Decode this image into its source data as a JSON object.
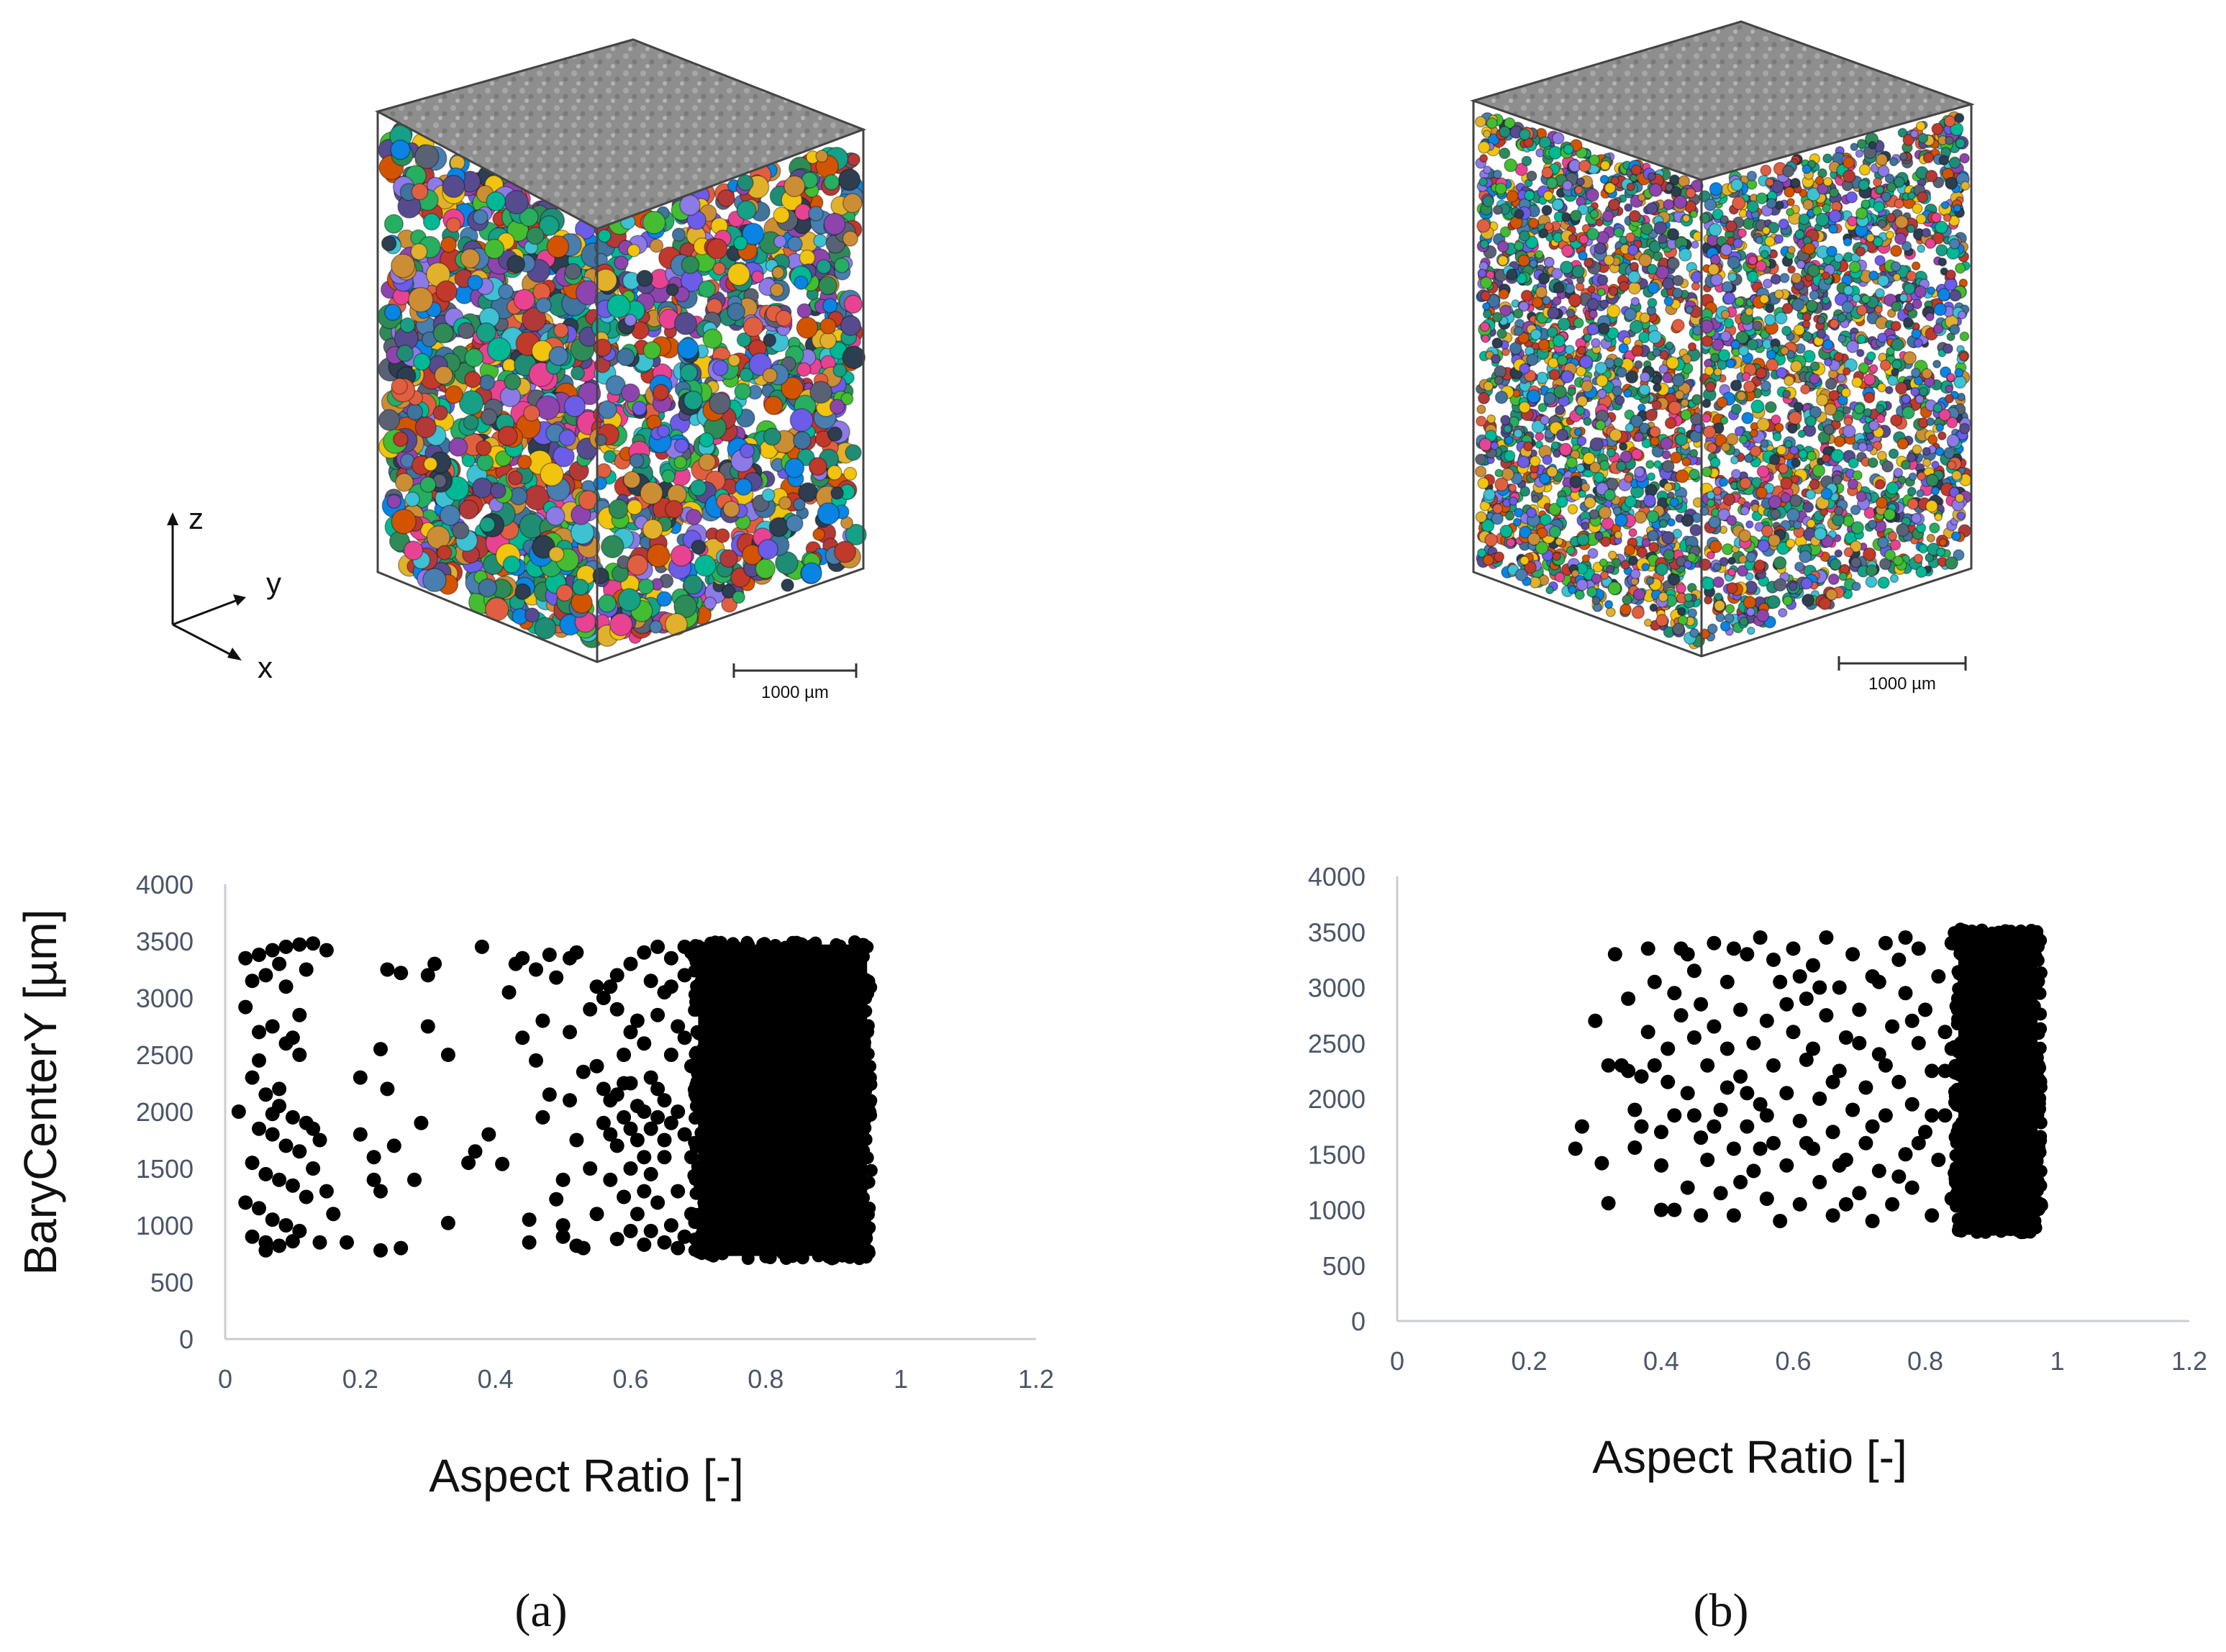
{
  "panels": [
    {
      "label": "(a)",
      "scale_bar_label": "1000 µm",
      "axes_triad": {
        "z": "z",
        "y": "y",
        "x": "x"
      }
    },
    {
      "label": "(b)",
      "scale_bar_label": "1000 µm"
    }
  ],
  "colors": {
    "marker": "#000000",
    "axis_line": "#c8ccd2",
    "tick_text": "#4a5568",
    "box_top": "#8e8e8e",
    "box_edge": "#444444"
  },
  "chart_data": [
    {
      "type": "scatter",
      "title": "",
      "xlabel": "Aspect Ratio [-]",
      "ylabel": "BaryCenterY [µm]",
      "xlim": [
        0,
        1.2
      ],
      "ylim": [
        0,
        4000
      ],
      "xticks": [
        "0",
        "0.2",
        "0.4",
        "0.6",
        "0.8",
        "1",
        "1.2"
      ],
      "yticks": [
        "0",
        "500",
        "1000",
        "1500",
        "2000",
        "2500",
        "3000",
        "3500",
        "4000"
      ],
      "grid": false,
      "legend": "none",
      "dense_cluster": {
        "x": [
          0.7,
          0.95
        ],
        "y": [
          730,
          3470
        ]
      },
      "points": [
        [
          0.03,
          3350
        ],
        [
          0.05,
          3380
        ],
        [
          0.07,
          3420
        ],
        [
          0.09,
          3450
        ],
        [
          0.11,
          3470
        ],
        [
          0.13,
          3480
        ],
        [
          0.15,
          3420
        ],
        [
          0.04,
          3150
        ],
        [
          0.06,
          3200
        ],
        [
          0.08,
          3300
        ],
        [
          0.03,
          2920
        ],
        [
          0.05,
          2700
        ],
        [
          0.07,
          2750
        ],
        [
          0.09,
          2600
        ],
        [
          0.11,
          2500
        ],
        [
          0.04,
          2300
        ],
        [
          0.06,
          2150
        ],
        [
          0.08,
          2050
        ],
        [
          0.1,
          1950
        ],
        [
          0.12,
          1900
        ],
        [
          0.05,
          1850
        ],
        [
          0.07,
          1800
        ],
        [
          0.09,
          1700
        ],
        [
          0.11,
          1650
        ],
        [
          0.13,
          1850
        ],
        [
          0.04,
          1550
        ],
        [
          0.06,
          1450
        ],
        [
          0.08,
          1400
        ],
        [
          0.1,
          1350
        ],
        [
          0.12,
          1250
        ],
        [
          0.05,
          1150
        ],
        [
          0.07,
          1050
        ],
        [
          0.09,
          1000
        ],
        [
          0.11,
          950
        ],
        [
          0.04,
          900
        ],
        [
          0.06,
          850
        ],
        [
          0.08,
          820
        ],
        [
          0.1,
          860
        ],
        [
          0.14,
          850
        ],
        [
          0.03,
          1200
        ],
        [
          0.05,
          2450
        ],
        [
          0.07,
          1980
        ],
        [
          0.09,
          3100
        ],
        [
          0.11,
          2850
        ],
        [
          0.13,
          1500
        ],
        [
          0.15,
          1300
        ],
        [
          0.06,
          780
        ],
        [
          0.08,
          2200
        ],
        [
          0.1,
          2650
        ],
        [
          0.12,
          3250
        ],
        [
          0.14,
          1750
        ],
        [
          0.02,
          2000
        ],
        [
          0.16,
          1100
        ],
        [
          0.18,
          850
        ],
        [
          0.2,
          1800
        ],
        [
          0.2,
          2300
        ],
        [
          0.22,
          1600
        ],
        [
          0.23,
          1300
        ],
        [
          0.24,
          2200
        ],
        [
          0.25,
          1700
        ],
        [
          0.23,
          2550
        ],
        [
          0.24,
          3250
        ],
        [
          0.26,
          3220
        ],
        [
          0.28,
          1400
        ],
        [
          0.29,
          1900
        ],
        [
          0.3,
          3200
        ],
        [
          0.31,
          3300
        ],
        [
          0.3,
          2750
        ],
        [
          0.33,
          2500
        ],
        [
          0.33,
          1020
        ],
        [
          0.22,
          1400
        ],
        [
          0.26,
          800
        ],
        [
          0.23,
          780
        ],
        [
          0.36,
          1550
        ],
        [
          0.37,
          1650
        ],
        [
          0.39,
          1800
        ],
        [
          0.41,
          1540
        ],
        [
          0.38,
          3450
        ],
        [
          0.42,
          3050
        ],
        [
          0.43,
          3300
        ],
        [
          0.44,
          3350
        ],
        [
          0.45,
          850
        ],
        [
          0.46,
          3250
        ],
        [
          0.46,
          2450
        ],
        [
          0.47,
          1950
        ],
        [
          0.48,
          2150
        ],
        [
          0.49,
          1230
        ],
        [
          0.49,
          3180
        ],
        [
          0.5,
          900
        ],
        [
          0.5,
          1000
        ],
        [
          0.51,
          2700
        ],
        [
          0.51,
          2100
        ],
        [
          0.52,
          3400
        ],
        [
          0.53,
          800
        ],
        [
          0.54,
          1500
        ],
        [
          0.54,
          2900
        ],
        [
          0.47,
          2800
        ],
        [
          0.45,
          1050
        ],
        [
          0.52,
          1750
        ],
        [
          0.55,
          3100
        ],
        [
          0.53,
          2350
        ],
        [
          0.5,
          1400
        ],
        [
          0.48,
          3380
        ],
        [
          0.44,
          2650
        ],
        [
          0.52,
          820
        ],
        [
          0.51,
          3350
        ],
        [
          0.55,
          1100
        ],
        [
          0.56,
          1900
        ],
        [
          0.57,
          2100
        ],
        [
          0.58,
          1700
        ],
        [
          0.59,
          2250
        ],
        [
          0.6,
          1850
        ],
        [
          0.61,
          2050
        ],
        [
          0.62,
          1600
        ],
        [
          0.63,
          2300
        ],
        [
          0.64,
          1950
        ],
        [
          0.65,
          1750
        ],
        [
          0.56,
          2200
        ],
        [
          0.57,
          1800
        ],
        [
          0.58,
          2150
        ],
        [
          0.59,
          1950
        ],
        [
          0.6,
          2250
        ],
        [
          0.61,
          1750
        ],
        [
          0.62,
          2000
        ],
        [
          0.63,
          1850
        ],
        [
          0.64,
          2200
        ],
        [
          0.65,
          2100
        ],
        [
          0.66,
          1900
        ],
        [
          0.67,
          2000
        ],
        [
          0.68,
          1800
        ],
        [
          0.57,
          1400
        ],
        [
          0.59,
          1250
        ],
        [
          0.61,
          1100
        ],
        [
          0.63,
          950
        ],
        [
          0.65,
          850
        ],
        [
          0.67,
          800
        ],
        [
          0.6,
          3300
        ],
        [
          0.62,
          3400
        ],
        [
          0.64,
          3450
        ],
        [
          0.66,
          3350
        ],
        [
          0.68,
          3450
        ],
        [
          0.58,
          2900
        ],
        [
          0.6,
          2700
        ],
        [
          0.62,
          2600
        ],
        [
          0.64,
          2850
        ],
        [
          0.66,
          2500
        ],
        [
          0.68,
          2650
        ],
        [
          0.56,
          3000
        ],
        [
          0.58,
          3200
        ],
        [
          0.6,
          1500
        ],
        [
          0.62,
          1300
        ],
        [
          0.64,
          1200
        ],
        [
          0.66,
          1000
        ],
        [
          0.68,
          900
        ],
        [
          0.58,
          880
        ],
        [
          0.62,
          830
        ],
        [
          0.66,
          3100
        ],
        [
          0.68,
          3200
        ],
        [
          0.59,
          2500
        ],
        [
          0.61,
          2800
        ],
        [
          0.63,
          3150
        ],
        [
          0.65,
          3050
        ],
        [
          0.67,
          2750
        ],
        [
          0.69,
          3400
        ],
        [
          0.69,
          2400
        ],
        [
          0.69,
          1600
        ],
        [
          0.69,
          1100
        ],
        [
          0.57,
          3100
        ],
        [
          0.6,
          950
        ],
        [
          0.63,
          1450
        ],
        [
          0.65,
          1600
        ],
        [
          0.67,
          1300
        ],
        [
          0.55,
          2400
        ]
      ]
    },
    {
      "type": "scatter",
      "title": "",
      "xlabel": "Aspect Ratio [-]",
      "ylabel": "",
      "xlim": [
        0,
        1.2
      ],
      "ylim": [
        0,
        4000
      ],
      "xticks": [
        "0",
        "0.2",
        "0.4",
        "0.6",
        "0.8",
        "1",
        "1.2"
      ],
      "yticks": [
        "0",
        "500",
        "1000",
        "1500",
        "2000",
        "2500",
        "3000",
        "3500",
        "4000"
      ],
      "grid": false,
      "legend": "none",
      "dense_cluster": {
        "x": [
          0.85,
          0.97
        ],
        "y": [
          820,
          3500
        ]
      },
      "points": [
        [
          0.27,
          1550
        ],
        [
          0.28,
          1750
        ],
        [
          0.3,
          2700
        ],
        [
          0.31,
          1420
        ],
        [
          0.32,
          1060
        ],
        [
          0.32,
          2300
        ],
        [
          0.33,
          3300
        ],
        [
          0.34,
          2300
        ],
        [
          0.35,
          2900
        ],
        [
          0.36,
          1900
        ],
        [
          0.36,
          1560
        ],
        [
          0.37,
          2200
        ],
        [
          0.37,
          1750
        ],
        [
          0.38,
          2600
        ],
        [
          0.38,
          3350
        ],
        [
          0.39,
          3050
        ],
        [
          0.39,
          2300
        ],
        [
          0.4,
          1400
        ],
        [
          0.4,
          1700
        ],
        [
          0.41,
          2150
        ],
        [
          0.41,
          2450
        ],
        [
          0.42,
          1850
        ],
        [
          0.42,
          1000
        ],
        [
          0.43,
          3350
        ],
        [
          0.43,
          2750
        ],
        [
          0.44,
          1200
        ],
        [
          0.44,
          2050
        ],
        [
          0.45,
          2550
        ],
        [
          0.45,
          3150
        ],
        [
          0.46,
          950
        ],
        [
          0.46,
          1650
        ],
        [
          0.47,
          2300
        ],
        [
          0.47,
          1450
        ],
        [
          0.48,
          3400
        ],
        [
          0.48,
          2650
        ],
        [
          0.49,
          1900
        ],
        [
          0.49,
          1150
        ],
        [
          0.5,
          2450
        ],
        [
          0.5,
          3050
        ],
        [
          0.51,
          1550
        ],
        [
          0.51,
          950
        ],
        [
          0.52,
          2200
        ],
        [
          0.52,
          2800
        ],
        [
          0.53,
          1750
        ],
        [
          0.53,
          3300
        ],
        [
          0.54,
          1350
        ],
        [
          0.54,
          2500
        ],
        [
          0.55,
          1950
        ],
        [
          0.55,
          3450
        ],
        [
          0.56,
          1100
        ],
        [
          0.56,
          2700
        ],
        [
          0.57,
          1600
        ],
        [
          0.57,
          2300
        ],
        [
          0.58,
          3050
        ],
        [
          0.58,
          900
        ],
        [
          0.59,
          2050
        ],
        [
          0.59,
          1400
        ],
        [
          0.6,
          2600
        ],
        [
          0.6,
          3350
        ],
        [
          0.61,
          1800
        ],
        [
          0.61,
          1050
        ],
        [
          0.62,
          2350
        ],
        [
          0.62,
          2900
        ],
        [
          0.63,
          1550
        ],
        [
          0.63,
          3200
        ],
        [
          0.64,
          2000
        ],
        [
          0.64,
          1250
        ],
        [
          0.65,
          2750
        ],
        [
          0.65,
          3450
        ],
        [
          0.66,
          1700
        ],
        [
          0.66,
          950
        ],
        [
          0.67,
          2250
        ],
        [
          0.67,
          3000
        ],
        [
          0.68,
          1450
        ],
        [
          0.68,
          2550
        ],
        [
          0.69,
          1900
        ],
        [
          0.69,
          3300
        ],
        [
          0.7,
          1150
        ],
        [
          0.7,
          2800
        ],
        [
          0.71,
          2100
        ],
        [
          0.71,
          1600
        ],
        [
          0.72,
          3100
        ],
        [
          0.72,
          900
        ],
        [
          0.73,
          2400
        ],
        [
          0.73,
          1350
        ],
        [
          0.74,
          3400
        ],
        [
          0.74,
          1850
        ],
        [
          0.75,
          2650
        ],
        [
          0.75,
          1050
        ],
        [
          0.76,
          2150
        ],
        [
          0.76,
          3250
        ],
        [
          0.77,
          1500
        ],
        [
          0.77,
          2950
        ],
        [
          0.78,
          1950
        ],
        [
          0.78,
          1200
        ],
        [
          0.79,
          2500
        ],
        [
          0.79,
          3350
        ],
        [
          0.8,
          1700
        ],
        [
          0.8,
          2800
        ],
        [
          0.81,
          950
        ],
        [
          0.81,
          2250
        ],
        [
          0.82,
          3100
        ],
        [
          0.82,
          1450
        ],
        [
          0.83,
          2600
        ],
        [
          0.83,
          1850
        ],
        [
          0.84,
          3400
        ],
        [
          0.84,
          1100
        ],
        [
          0.85,
          2050
        ],
        [
          0.85,
          2900
        ],
        [
          0.42,
          2950
        ],
        [
          0.46,
          2850
        ],
        [
          0.52,
          1250
        ],
        [
          0.57,
          3250
        ],
        [
          0.63,
          2450
        ],
        [
          0.68,
          1050
        ],
        [
          0.74,
          2300
        ],
        [
          0.79,
          1600
        ],
        [
          0.44,
          3300
        ],
        [
          0.5,
          2100
        ],
        [
          0.55,
          1550
        ],
        [
          0.61,
          3100
        ],
        [
          0.66,
          2150
        ],
        [
          0.72,
          1750
        ],
        [
          0.77,
          3450
        ],
        [
          0.83,
          2250
        ],
        [
          0.48,
          1750
        ],
        [
          0.53,
          2050
        ],
        [
          0.59,
          2850
        ],
        [
          0.64,
          3000
        ],
        [
          0.7,
          2500
        ],
        [
          0.76,
          1300
        ],
        [
          0.81,
          1850
        ],
        [
          0.35,
          2250
        ],
        [
          0.4,
          1000
        ],
        [
          0.45,
          1850
        ],
        [
          0.51,
          3350
        ],
        [
          0.56,
          1850
        ],
        [
          0.62,
          1600
        ],
        [
          0.67,
          1400
        ],
        [
          0.73,
          3050
        ],
        [
          0.78,
          2700
        ],
        [
          0.84,
          2450
        ]
      ]
    }
  ]
}
